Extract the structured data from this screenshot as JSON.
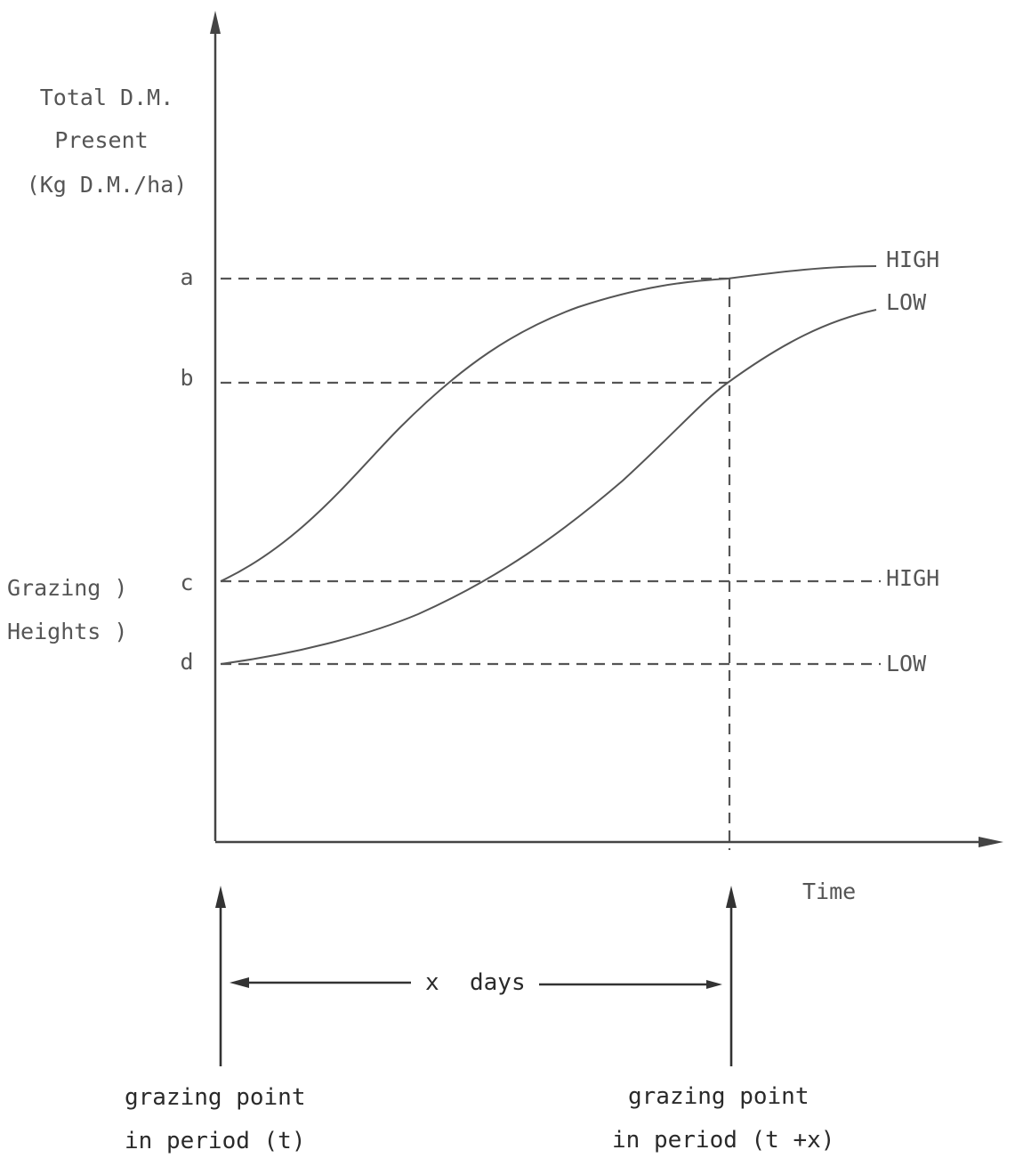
{
  "y_axis_label": [
    "Total D.M.",
    "Present",
    "(Kg D.M./ha)"
  ],
  "y_levels": [
    "a",
    "b",
    "c",
    "d"
  ],
  "side_label": [
    "Grazing )",
    "Heights )"
  ],
  "curve_labels": {
    "upper": "HIGH",
    "lower": "LOW"
  },
  "height_labels": {
    "upper": "HIGH",
    "lower": "LOW"
  },
  "x_axis_label": "Time",
  "interval": {
    "symbol": "x",
    "unit": "days"
  },
  "grazing_points": [
    {
      "line1": "grazing point",
      "line2": "in period (t)"
    },
    {
      "line1": "grazing point",
      "line2": "in period (t +x)"
    }
  ]
}
